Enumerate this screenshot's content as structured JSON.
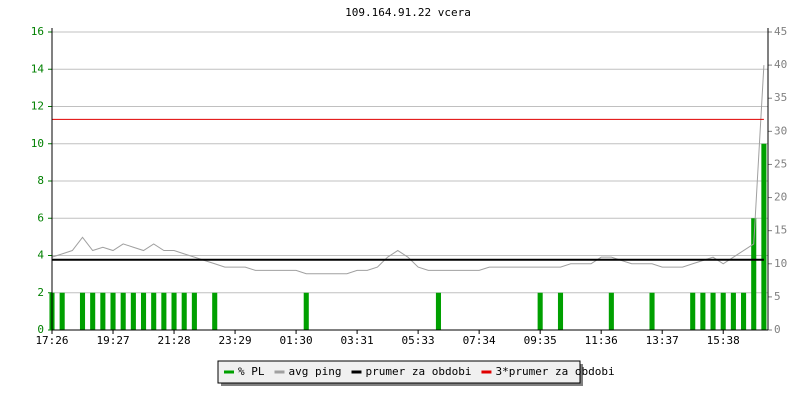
{
  "chart_data": {
    "type": "line",
    "title": "109.164.91.22 vcera",
    "categories": [
      "17:26",
      null,
      null,
      null,
      null,
      null,
      "19:27",
      null,
      null,
      null,
      null,
      null,
      "21:28",
      null,
      null,
      null,
      null,
      null,
      "23:29",
      null,
      null,
      null,
      null,
      null,
      "01:30",
      null,
      null,
      null,
      null,
      null,
      "03:31",
      null,
      null,
      null,
      null,
      null,
      "05:33",
      null,
      null,
      null,
      null,
      null,
      "07:34",
      null,
      null,
      null,
      null,
      null,
      "09:35",
      null,
      null,
      null,
      null,
      null,
      "11:36",
      null,
      null,
      null,
      null,
      null,
      "13:37",
      null,
      null,
      null,
      null,
      null,
      "15:38",
      null,
      null,
      null,
      null
    ],
    "ylim": [
      0,
      16
    ],
    "yticks": [
      0,
      2,
      4,
      6,
      8,
      10,
      12,
      14,
      16
    ],
    "y2lim": [
      0,
      45
    ],
    "y2ticks": [
      0,
      5,
      10,
      15,
      20,
      25,
      30,
      35,
      40,
      45
    ],
    "grid": true,
    "series": [
      {
        "name": "% PL",
        "type": "bar",
        "color": "#00a000",
        "values": [
          2,
          2,
          0,
          2,
          2,
          2,
          2,
          2,
          2,
          2,
          2,
          2,
          2,
          2,
          2,
          0,
          2,
          0,
          0,
          0,
          0,
          0,
          0,
          0,
          0,
          2,
          0,
          0,
          0,
          0,
          0,
          0,
          0,
          0,
          0,
          0,
          0,
          0,
          2,
          0,
          0,
          0,
          0,
          0,
          0,
          0,
          0,
          0,
          2,
          0,
          2,
          0,
          0,
          0,
          0,
          2,
          0,
          0,
          0,
          2,
          0,
          0,
          0,
          2,
          2,
          2,
          2,
          2,
          2,
          6,
          10
        ]
      },
      {
        "name": "avg ping",
        "type": "line",
        "axis": "y2",
        "color": "#a0a0a0",
        "values": [
          11,
          11.5,
          12,
          14,
          12,
          12.5,
          12,
          13,
          12.5,
          12,
          13,
          12,
          12,
          11.5,
          11,
          10.5,
          10,
          9.5,
          9.5,
          9.5,
          9,
          9,
          9,
          9,
          9,
          8.5,
          8.5,
          8.5,
          8.5,
          8.5,
          9,
          9,
          9.5,
          11,
          12,
          11,
          9.5,
          9,
          9,
          9,
          9,
          9,
          9,
          9.5,
          9.5,
          9.5,
          9.5,
          9.5,
          9.5,
          9.5,
          9.5,
          10,
          10,
          10,
          11,
          11,
          10.5,
          10,
          10,
          10,
          9.5,
          9.5,
          9.5,
          10,
          10.5,
          11,
          10,
          11,
          12,
          13,
          40
        ]
      },
      {
        "name": "prumer za obdobi",
        "type": "line",
        "axis": "y2",
        "color": "#000000",
        "values": [
          10.6,
          10.6,
          10.6,
          10.6,
          10.6,
          10.6,
          10.6,
          10.6,
          10.6,
          10.6,
          10.6,
          10.6,
          10.6,
          10.6,
          10.6,
          10.6,
          10.6,
          10.6,
          10.6,
          10.6,
          10.6,
          10.6,
          10.6,
          10.6,
          10.6,
          10.6,
          10.6,
          10.6,
          10.6,
          10.6,
          10.6,
          10.6,
          10.6,
          10.6,
          10.6,
          10.6,
          10.6,
          10.6,
          10.6,
          10.6,
          10.6,
          10.6,
          10.6,
          10.6,
          10.6,
          10.6,
          10.6,
          10.6,
          10.6,
          10.6,
          10.6,
          10.6,
          10.6,
          10.6,
          10.6,
          10.6,
          10.6,
          10.6,
          10.6,
          10.6,
          10.6,
          10.6,
          10.6,
          10.6,
          10.6,
          10.6,
          10.6,
          10.6,
          10.6,
          10.6,
          10.6
        ]
      },
      {
        "name": "3*prumer za obdobi",
        "type": "line",
        "axis": "y2",
        "color": "#e00000",
        "values": [
          31.8,
          31.8,
          31.8,
          31.8,
          31.8,
          31.8,
          31.8,
          31.8,
          31.8,
          31.8,
          31.8,
          31.8,
          31.8,
          31.8,
          31.8,
          31.8,
          31.8,
          31.8,
          31.8,
          31.8,
          31.8,
          31.8,
          31.8,
          31.8,
          31.8,
          31.8,
          31.8,
          31.8,
          31.8,
          31.8,
          31.8,
          31.8,
          31.8,
          31.8,
          31.8,
          31.8,
          31.8,
          31.8,
          31.8,
          31.8,
          31.8,
          31.8,
          31.8,
          31.8,
          31.8,
          31.8,
          31.8,
          31.8,
          31.8,
          31.8,
          31.8,
          31.8,
          31.8,
          31.8,
          31.8,
          31.8,
          31.8,
          31.8,
          31.8,
          31.8,
          31.8,
          31.8,
          31.8,
          31.8,
          31.8,
          31.8,
          31.8,
          31.8,
          31.8,
          31.8,
          31.8
        ]
      }
    ]
  }
}
